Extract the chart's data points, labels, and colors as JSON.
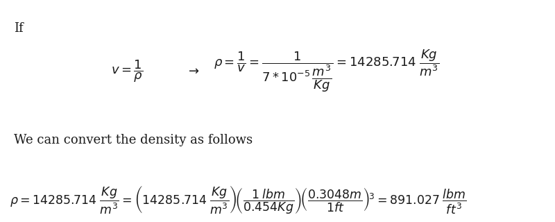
{
  "background_color": "#ffffff",
  "text_color": "#1a1a1a",
  "fig_width": 8.0,
  "fig_height": 3.2,
  "dpi": 100,
  "fontsize_text": 13,
  "fontsize_eq": 13,
  "fontsize_eq2": 12.5
}
